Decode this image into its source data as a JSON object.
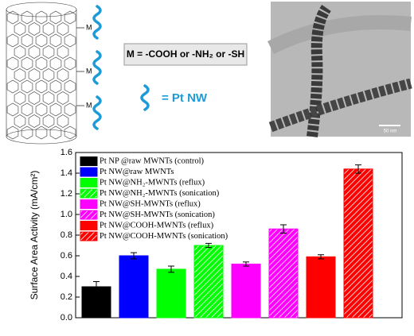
{
  "diagram": {
    "m_labels": [
      "M",
      "M",
      "M"
    ],
    "box_text": "M = -COOH or  -NH₂ or -SH",
    "pt_nw_label": "= Pt NW",
    "scale_bar": "50 nm"
  },
  "chart_data": {
    "type": "bar",
    "y_label": "Surface Area Activity (mA/cm²)",
    "ylim": [
      0,
      1.6
    ],
    "yticks": [
      {
        "value": 0,
        "label": "0.0"
      },
      0.2,
      0.4,
      0.6,
      0.8,
      {
        "value": 1,
        "label": "1.0"
      },
      1.2,
      1.4,
      1.6
    ],
    "legend": "upper left",
    "series": [
      {
        "name": "Pt NP @raw MWNTs (control)",
        "color": "#000000",
        "hatch": false,
        "values": [
          0.3
        ],
        "errors": [
          0.05
        ]
      },
      {
        "name": "Pt NW@raw MWNTs",
        "color": "#0000ff",
        "hatch": false,
        "values": [
          0.6
        ],
        "errors": [
          0.03
        ]
      },
      {
        "name": "Pt NW@NH₂-MWNTs (reflux)",
        "color": "#00ff00",
        "hatch": false,
        "values": [
          0.47
        ],
        "errors": [
          0.03
        ]
      },
      {
        "name": "Pt NW@NH₂-MWNTs (sonication)",
        "color": "#00ff00",
        "hatch": true,
        "values": [
          0.7
        ],
        "errors": [
          0.02
        ]
      },
      {
        "name": "Pt NW@SH-MWNTs (reflux)",
        "color": "#ff00ff",
        "hatch": false,
        "values": [
          0.52
        ],
        "errors": [
          0.02
        ]
      },
      {
        "name": "Pt NW@SH-MWNTs (sonication)",
        "color": "#ff00ff",
        "hatch": true,
        "values": [
          0.86
        ],
        "errors": [
          0.04
        ]
      },
      {
        "name": "Pt NW@COOH-MWNTs (reflux)",
        "color": "#ff0000",
        "hatch": false,
        "values": [
          0.59
        ],
        "errors": [
          0.02
        ]
      },
      {
        "name": "Pt NW@COOH-MWNTs (sonication)",
        "color": "#ff0000",
        "hatch": true,
        "values": [
          1.44
        ],
        "errors": [
          0.04
        ]
      }
    ]
  }
}
